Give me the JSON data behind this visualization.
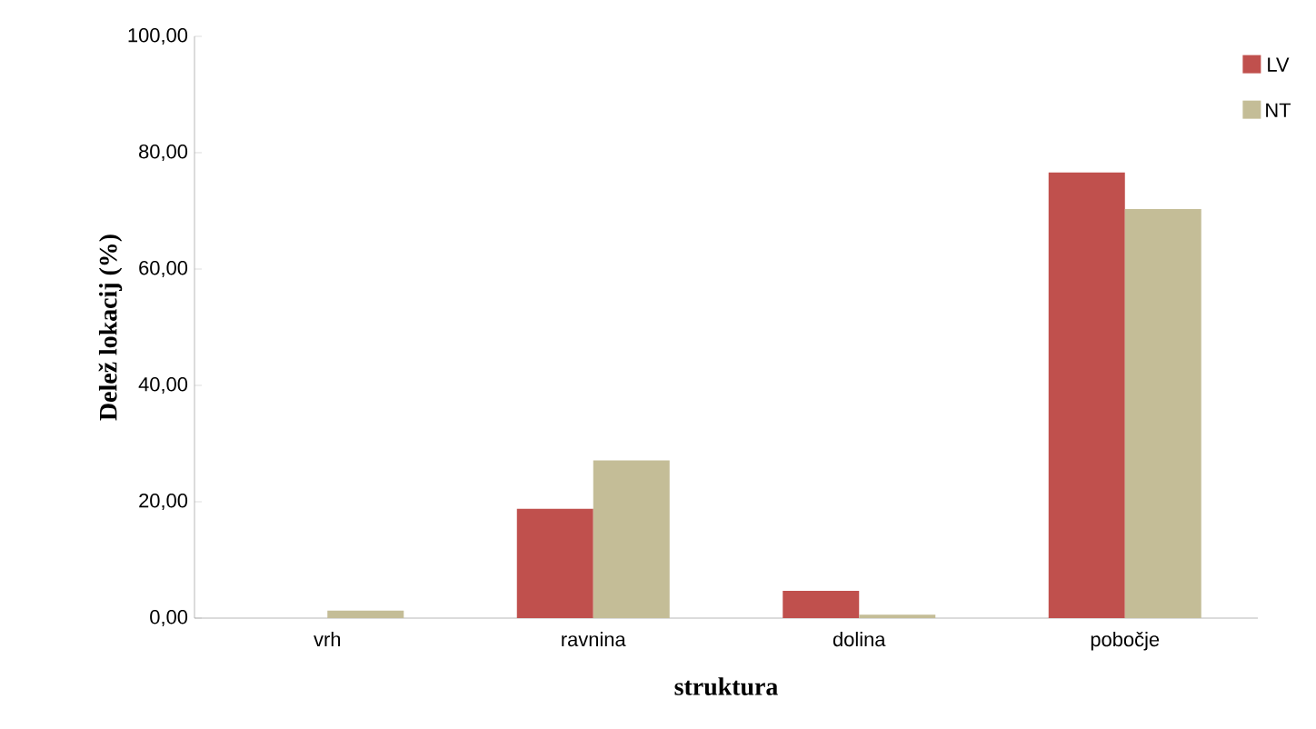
{
  "chart_data": {
    "type": "bar",
    "xlabel": "struktura",
    "ylabel": "Delež lokacij (%)",
    "categories": [
      "vrh",
      "ravnina",
      "dolina",
      "pobočje"
    ],
    "series": [
      {
        "name": "LV",
        "color": "#c0504d",
        "values": [
          0,
          18.8,
          4.7,
          76.6
        ]
      },
      {
        "name": "NT",
        "color": "#c4bd97",
        "values": [
          1.3,
          27.1,
          0.6,
          70.3
        ]
      }
    ],
    "ylim": [
      0,
      100
    ],
    "yticks": [
      {
        "value": 0,
        "label": "0,00"
      },
      {
        "value": 20,
        "label": "20,00"
      },
      {
        "value": 40,
        "label": "40,00"
      },
      {
        "value": 60,
        "label": "60,00"
      },
      {
        "value": 80,
        "label": "80,00"
      },
      {
        "value": 100,
        "label": "100,00"
      }
    ],
    "grid": false,
    "legend": "top right"
  }
}
